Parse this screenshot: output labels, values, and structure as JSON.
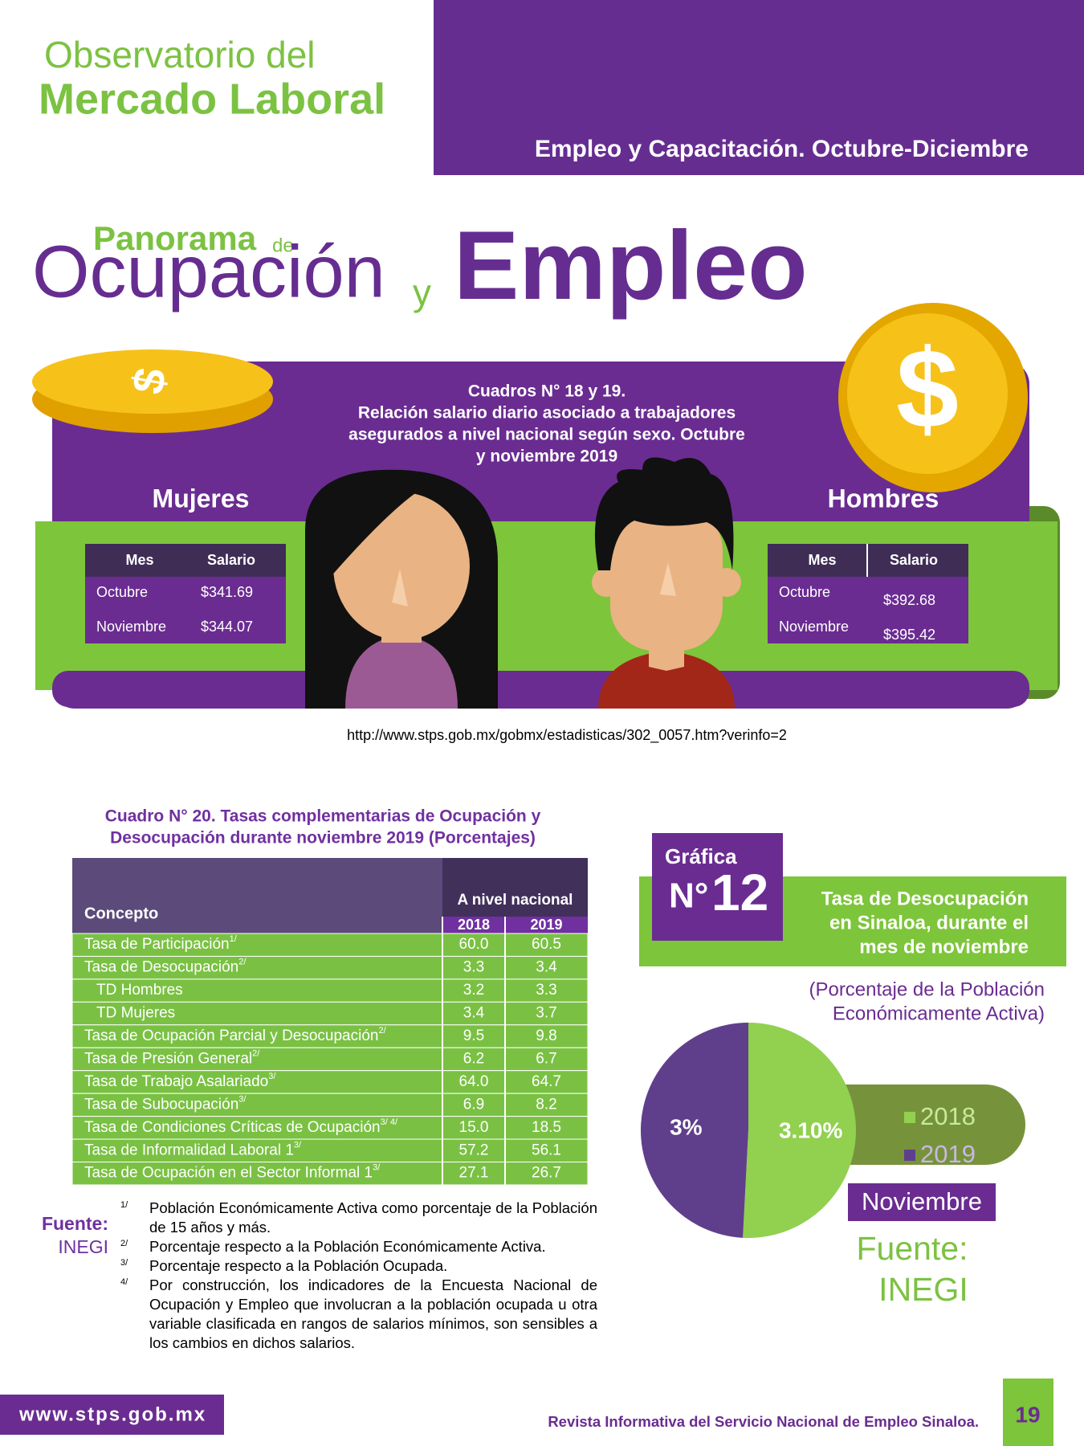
{
  "header": {
    "line1": "Observatorio del",
    "line2": "Mercado Laboral",
    "section": "Empleo y Capacitación. Octubre-Diciembre"
  },
  "title": {
    "panorama": "Panorama",
    "de": "de",
    "ocupacion": "Ocupación",
    "y": "y",
    "empleo": "Empleo"
  },
  "salary": {
    "caption": [
      "Cuadros N° 18 y 19.",
      "Relación salario diario asociado a trabajadores",
      "asegurados a nivel nacional según sexo. Octubre",
      "y noviembre 2019"
    ],
    "women": {
      "label": "Mujeres",
      "columns": [
        "Mes",
        "Salario"
      ],
      "rows": [
        [
          "Octubre",
          "$341.69"
        ],
        [
          "Noviembre",
          "$344.07"
        ]
      ]
    },
    "men": {
      "label": "Hombres",
      "columns": [
        "Mes",
        "Salario"
      ],
      "rows": [
        [
          "Octubre",
          "$392.68"
        ],
        [
          "Noviembre",
          "$395.42"
        ]
      ]
    },
    "url": "http://www.stps.gob.mx/gobmx/estadisticas/302_0057.htm?verinfo=2"
  },
  "rates": {
    "title": [
      "Cuadro N° 20. Tasas complementarias de Ocupación y",
      "Desocupación durante noviembre 2019 (Porcentajes)"
    ],
    "header": {
      "concept": "Concepto",
      "group": "A nivel nacional",
      "years": [
        "2018",
        "2019"
      ]
    },
    "rows": [
      {
        "label": "Tasa de Participación",
        "note": "1/",
        "indent": false,
        "values": [
          "60.0",
          "60.5"
        ]
      },
      {
        "label": "Tasa de Desocupación",
        "note": "2/",
        "indent": false,
        "values": [
          "3.3",
          "3.4"
        ]
      },
      {
        "label": "TD Hombres",
        "indent": true,
        "values": [
          "3.2",
          "3.3"
        ]
      },
      {
        "label": "TD Mujeres",
        "indent": true,
        "values": [
          "3.4",
          "3.7"
        ]
      },
      {
        "label": "Tasa de Ocupación Parcial y Desocupación",
        "note": "2/",
        "indent": false,
        "values": [
          "9.5",
          "9.8"
        ]
      },
      {
        "label": "Tasa de Presión General",
        "note": "2/",
        "indent": false,
        "values": [
          "6.2",
          "6.7"
        ]
      },
      {
        "label": "Tasa de Trabajo Asalariado",
        "note": "3/",
        "indent": false,
        "values": [
          "64.0",
          "64.7"
        ]
      },
      {
        "label": "Tasa de Subocupación",
        "note": "3/",
        "indent": false,
        "values": [
          "6.9",
          "8.2"
        ]
      },
      {
        "label": "Tasa de Condiciones Críticas de Ocupación",
        "note": "3/ 4/",
        "indent": false,
        "values": [
          "15.0",
          "18.5"
        ]
      },
      {
        "label": "Tasa de Informalidad Laboral 1",
        "note": "3/",
        "indent": false,
        "values": [
          "57.2",
          "56.1"
        ]
      },
      {
        "label": "Tasa de Ocupación en el Sector Informal 1",
        "note": "3/",
        "indent": false,
        "values": [
          "27.1",
          "26.7"
        ]
      }
    ],
    "source": {
      "label": "Fuente:",
      "name": "INEGI"
    },
    "notes": [
      {
        "mark": "1/",
        "text": "Población Económicamente Activa como porcentaje de la Población de 15 años y más."
      },
      {
        "mark": "2/",
        "text": "Porcentaje respecto a la Población Económicamente Activa."
      },
      {
        "mark": "3/",
        "text": "Porcentaje respecto a la Población Ocupada."
      },
      {
        "mark": "4/",
        "text": "Por construcción, los indicadores de la Encuesta Nacional de Ocupación y Empleo que involucran a la población ocupada u otra variable clasificada en rangos de salarios mínimos, son sensibles a los cambios en dichos salarios."
      }
    ]
  },
  "chart_data": {
    "type": "pie",
    "badge": "Gráfica",
    "badge_prefix": "N°",
    "badge_number": "12",
    "title": [
      "Tasa de Desocupación",
      "en Sinaloa, durante el",
      "mes de noviembre"
    ],
    "subtitle": [
      "(Porcentaje de la Población",
      "Económicamente Activa)"
    ],
    "categories": [
      "2018",
      "2019"
    ],
    "values": [
      3.1,
      3
    ],
    "value_labels": [
      "3.10%",
      "3%"
    ],
    "colors": [
      "#92d050",
      "#5f3f8c"
    ],
    "period": "Noviembre",
    "source": {
      "label": "Fuente:",
      "name": "INEGI"
    }
  },
  "footer": {
    "site": "www.stps.gob.mx",
    "publication": "Revista Informativa del Servicio Nacional de Empleo Sinaloa.",
    "page": "19"
  }
}
